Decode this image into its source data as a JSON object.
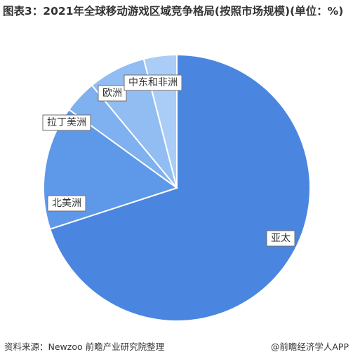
{
  "chart_data": {
    "type": "pie",
    "title": "图表3：2021年全球移动游戏区域竞争格局(按照市场规模)(单位：%)",
    "unit": "%",
    "categories": [
      "亚太",
      "北美洲",
      "拉丁美洲",
      "欧洲",
      "中东和非洲"
    ],
    "values": [
      70,
      15,
      4,
      7,
      4
    ],
    "colors": [
      "#4a86e0",
      "#5e98e8",
      "#7fb0f0",
      "#91bdf2",
      "#a9cdf6"
    ],
    "start_angle_deg": 0,
    "direction": "clockwise",
    "legend": "none"
  },
  "footer": {
    "source": "资料来源：Newzoo 前瞻产业研究院整理",
    "brand": "@前瞻经济学人APP"
  }
}
